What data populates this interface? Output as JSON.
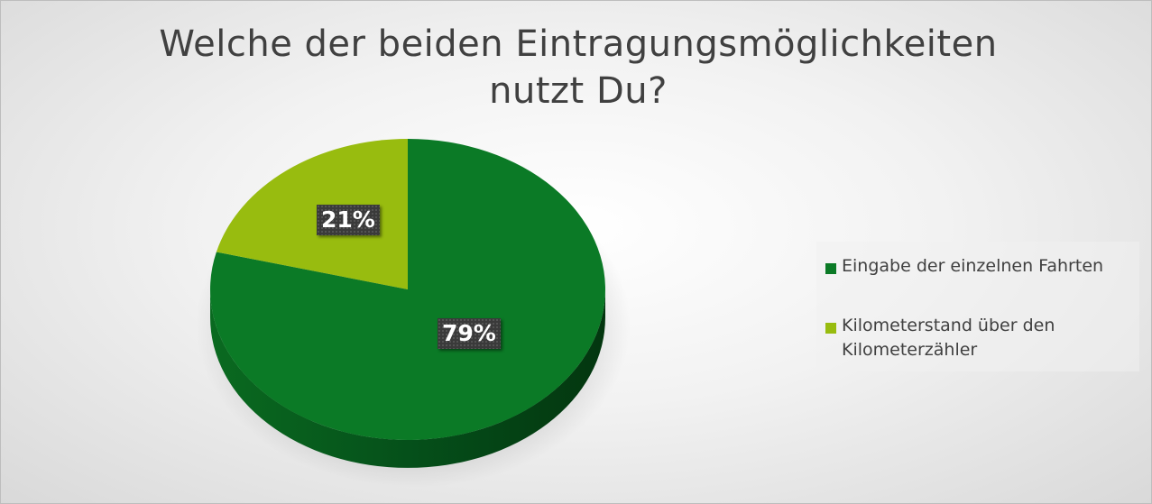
{
  "chart_data": {
    "type": "pie",
    "title": "Welche der beiden Eintragungsmöglichkeiten nutzt Du?",
    "title_lines": [
      "Welche der beiden Eintragungsmöglichkeiten",
      "nutzt Du?"
    ],
    "categories": [
      "Eingabe der einzelnen Fahrten",
      "Kilometerstand über den Kilometerzähler"
    ],
    "values": [
      79,
      21
    ],
    "data_labels": [
      "79%",
      "21%"
    ],
    "legend_lines": [
      [
        "Eingabe der einzelnen Fahrten"
      ],
      [
        "Kilometerstand über den",
        "Kilometerzähler"
      ]
    ],
    "colors": [
      "#0b7a26",
      "#98bc0f"
    ],
    "style": "3d",
    "legend_position": "right"
  }
}
